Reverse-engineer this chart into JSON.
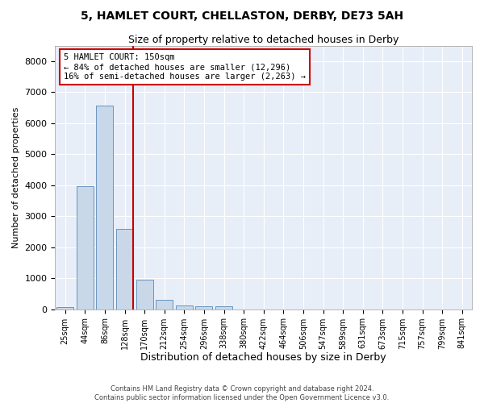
{
  "title": "5, HAMLET COURT, CHELLASTON, DERBY, DE73 5AH",
  "subtitle": "Size of property relative to detached houses in Derby",
  "xlabel": "Distribution of detached houses by size in Derby",
  "ylabel": "Number of detached properties",
  "bar_color": "#c8d8e8",
  "bar_edge_color": "#5888b8",
  "background_color": "#e8eef8",
  "grid_color": "#ffffff",
  "vline_color": "#cc0000",
  "annotation_box_text": "5 HAMLET COURT: 150sqm\n← 84% of detached houses are smaller (12,296)\n16% of semi-detached houses are larger (2,263) →",
  "annotation_box_edge_color": "#cc0000",
  "bins": [
    "25sqm",
    "44sqm",
    "86sqm",
    "128sqm",
    "170sqm",
    "212sqm",
    "254sqm",
    "296sqm",
    "338sqm",
    "380sqm",
    "422sqm",
    "464sqm",
    "506sqm",
    "547sqm",
    "589sqm",
    "631sqm",
    "673sqm",
    "715sqm",
    "757sqm",
    "799sqm",
    "841sqm"
  ],
  "values": [
    80,
    3980,
    6580,
    2600,
    940,
    310,
    120,
    90,
    90,
    0,
    0,
    0,
    0,
    0,
    0,
    0,
    0,
    0,
    0,
    0,
    0
  ],
  "ylim": [
    0,
    8500
  ],
  "yticks": [
    0,
    1000,
    2000,
    3000,
    4000,
    5000,
    6000,
    7000,
    8000
  ],
  "footer_line1": "Contains HM Land Registry data © Crown copyright and database right 2024.",
  "footer_line2": "Contains public sector information licensed under the Open Government Licence v3.0.",
  "vline_x": 3.43
}
